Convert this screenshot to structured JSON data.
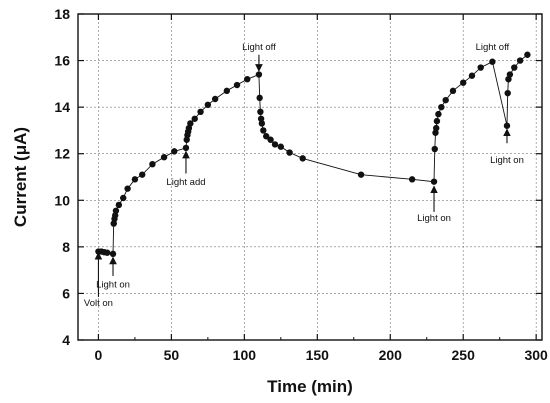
{
  "chart_data": {
    "type": "scatter",
    "xlabel": "Time (min)",
    "ylabel": "Current (μA)",
    "xlim": [
      -14,
      304
    ],
    "ylim": [
      4,
      18
    ],
    "xticks": [
      0,
      50,
      100,
      150,
      200,
      250,
      300
    ],
    "yticks": [
      4,
      6,
      8,
      10,
      12,
      14,
      16,
      18
    ],
    "grid": true,
    "series": [
      {
        "x": [
          0,
          2,
          4,
          6,
          10,
          10.5,
          11,
          11.5,
          12,
          14,
          17,
          20,
          25,
          30,
          37,
          45,
          52,
          60,
          60.5,
          61,
          61.5,
          62,
          63,
          66,
          70,
          75,
          80,
          88,
          95,
          102,
          110,
          110.5,
          111,
          111.5,
          112,
          113,
          115,
          118,
          121,
          125,
          131,
          140,
          180,
          215,
          230,
          230.5,
          231,
          231.5,
          232,
          233,
          235,
          238,
          243,
          250,
          256,
          262,
          270,
          280,
          280.5,
          281,
          282,
          285,
          289,
          294
        ],
        "y": [
          7.8,
          7.8,
          7.77,
          7.75,
          7.7,
          9.0,
          9.2,
          9.35,
          9.55,
          9.8,
          10.1,
          10.5,
          10.9,
          11.1,
          11.55,
          11.85,
          12.1,
          12.25,
          12.6,
          12.8,
          12.95,
          13.1,
          13.3,
          13.5,
          13.8,
          14.1,
          14.35,
          14.7,
          14.95,
          15.2,
          15.4,
          14.4,
          13.8,
          13.5,
          13.3,
          13.0,
          12.75,
          12.6,
          12.4,
          12.3,
          12.05,
          11.8,
          11.1,
          10.9,
          10.8,
          12.2,
          12.9,
          13.1,
          13.4,
          13.7,
          14.0,
          14.3,
          14.7,
          15.05,
          15.35,
          15.7,
          15.95,
          13.2,
          14.6,
          15.2,
          15.4,
          15.7,
          16.0,
          16.25
        ]
      }
    ],
    "annotations": [
      {
        "text": "Volt on",
        "x": 0,
        "y": 5.9
      },
      {
        "text": "Light on",
        "x": 10,
        "y": 6.8
      },
      {
        "text": "Light add",
        "x": 60,
        "y": 11.1
      },
      {
        "text": "Light off",
        "x": 110,
        "y": 16.3
      },
      {
        "text": "Light on",
        "x": 230,
        "y": 9.9
      },
      {
        "text": "Light off",
        "x": 270,
        "y": 16.3
      },
      {
        "text": "Light on",
        "x": 280,
        "y": 12.3
      }
    ]
  }
}
